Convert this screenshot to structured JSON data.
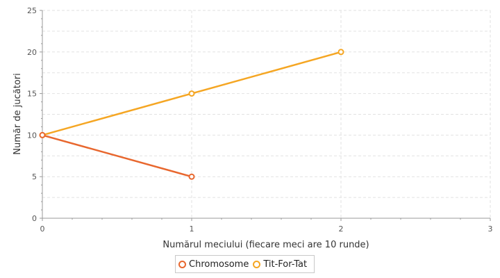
{
  "chart_data": {
    "type": "line",
    "title": "",
    "xlabel": "Numărul meciului (fiecare meci are 10 runde)",
    "ylabel": "Număr de jucători",
    "xlim": [
      0,
      3
    ],
    "ylim": [
      0,
      25
    ],
    "x_ticks": [
      "0",
      "1",
      "2",
      "3"
    ],
    "y_ticks": [
      "0",
      "5",
      "10",
      "15",
      "20",
      "25"
    ],
    "grid": true,
    "legend_position": "bottom-center",
    "series": [
      {
        "name": "Chromosome",
        "color": "#e8672e",
        "x": [
          0,
          1
        ],
        "y": [
          10,
          5
        ]
      },
      {
        "name": "Tit-For-Tat",
        "color": "#f5a623",
        "x": [
          0,
          1,
          2
        ],
        "y": [
          10,
          15,
          20
        ]
      }
    ]
  }
}
